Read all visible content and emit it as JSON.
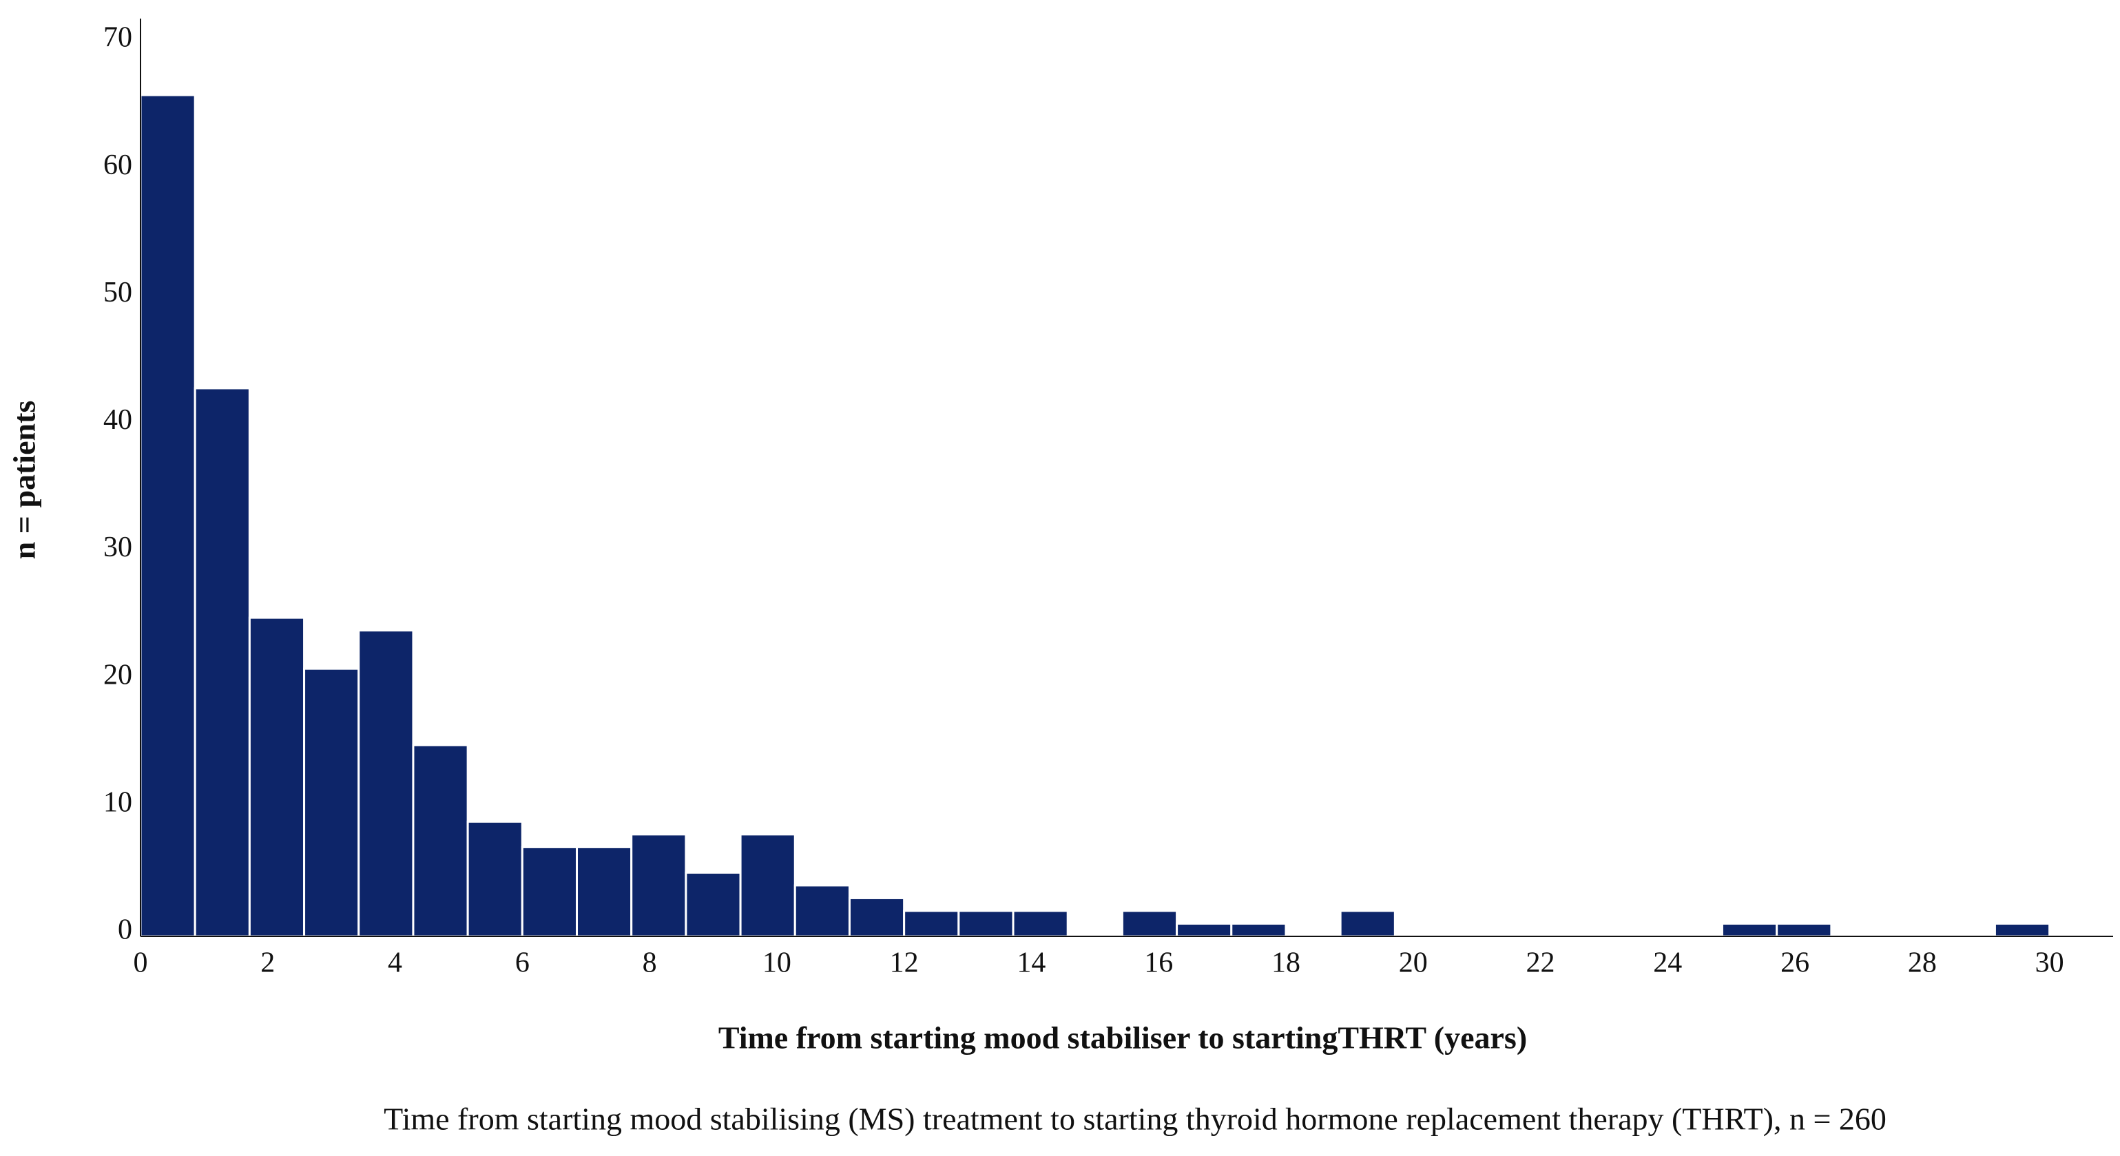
{
  "chart_data": {
    "type": "histogram",
    "x_label": "Time from starting mood stabiliser to startingTHRT (years)",
    "y_label": "n = patients",
    "caption": "Time from starting mood stabilising (MS) treatment to starting thyroid hormone replacement therapy (THRT), n = 260",
    "bins": [
      0,
      0.8571,
      1.7143,
      2.5714,
      3.4286,
      4.2857,
      5.1429,
      6,
      6.8571,
      7.7143,
      8.5714,
      9.4286,
      10.2857,
      11.1429,
      12,
      12.8571,
      13.7143,
      14.5714,
      15.4286,
      16.2857,
      17.1429,
      18,
      18.8571,
      19.7143,
      20.5714,
      21.4286,
      22.2857,
      23.1429,
      24,
      24.8571,
      25.7143,
      26.5714,
      27.4286,
      28.2857,
      29.1429,
      30
    ],
    "values": [
      66,
      43,
      25,
      21,
      24,
      15,
      9,
      7,
      7,
      8,
      5,
      8,
      4,
      3,
      2,
      2,
      2,
      0,
      2,
      1,
      1,
      0,
      2,
      0,
      0,
      0,
      0,
      0,
      0,
      1,
      1,
      0,
      0,
      0,
      1
    ],
    "color": "#0d2569",
    "xlim": [
      0,
      31
    ],
    "xticks": [
      0,
      2,
      4,
      6,
      8,
      10,
      12,
      14,
      16,
      18,
      20,
      22,
      24,
      26,
      28,
      30
    ],
    "ylim": [
      0,
      72
    ],
    "yticks": [
      0,
      10,
      20,
      30,
      40,
      50,
      60,
      70
    ],
    "grid": false
  }
}
